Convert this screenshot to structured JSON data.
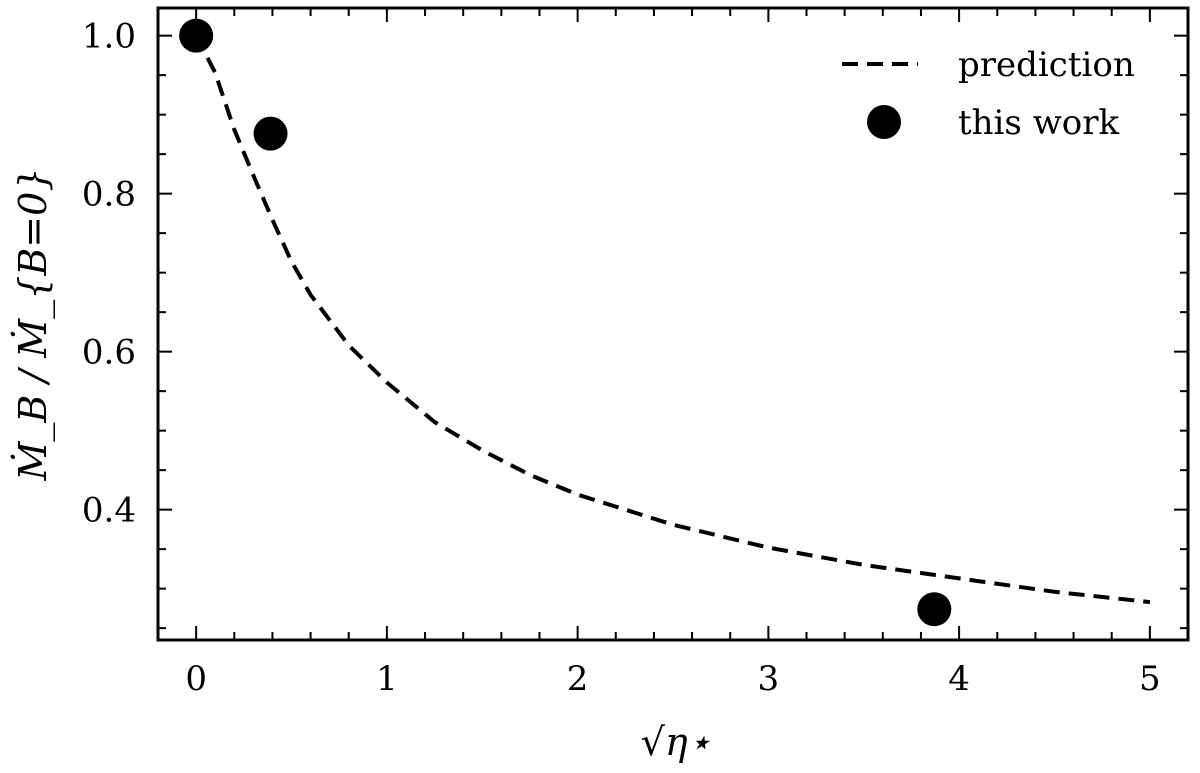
{
  "chart_data": {
    "type": "scatter",
    "xlabel": "√η⋆",
    "ylabel": "Ṁ_B / Ṁ_{B=0}",
    "xlim": [
      -0.2,
      5.2
    ],
    "ylim": [
      0.235,
      1.035
    ],
    "x_ticks": [
      "0",
      "1",
      "2",
      "3",
      "4",
      "5"
    ],
    "y_ticks": [
      "0.4",
      "0.6",
      "0.8",
      "1.0"
    ],
    "legend_position": "top-right",
    "series": [
      {
        "name": "prediction",
        "style": "dashed-line",
        "color": "#000000",
        "x": [
          0,
          0.1,
          0.2,
          0.3,
          0.4,
          0.5,
          0.6,
          0.8,
          1.0,
          1.25,
          1.5,
          1.75,
          2.0,
          2.5,
          3.0,
          3.5,
          4.0,
          4.5,
          5.0
        ],
        "y": [
          1.0,
          0.953,
          0.881,
          0.823,
          0.767,
          0.714,
          0.672,
          0.608,
          0.561,
          0.511,
          0.475,
          0.444,
          0.419,
          0.381,
          0.352,
          0.33,
          0.313,
          0.296,
          0.283
        ]
      },
      {
        "name": "this work",
        "style": "markers",
        "color": "#000000",
        "x": [
          0.0,
          0.39,
          3.87
        ],
        "y": [
          1.0,
          0.876,
          0.274
        ]
      }
    ]
  }
}
